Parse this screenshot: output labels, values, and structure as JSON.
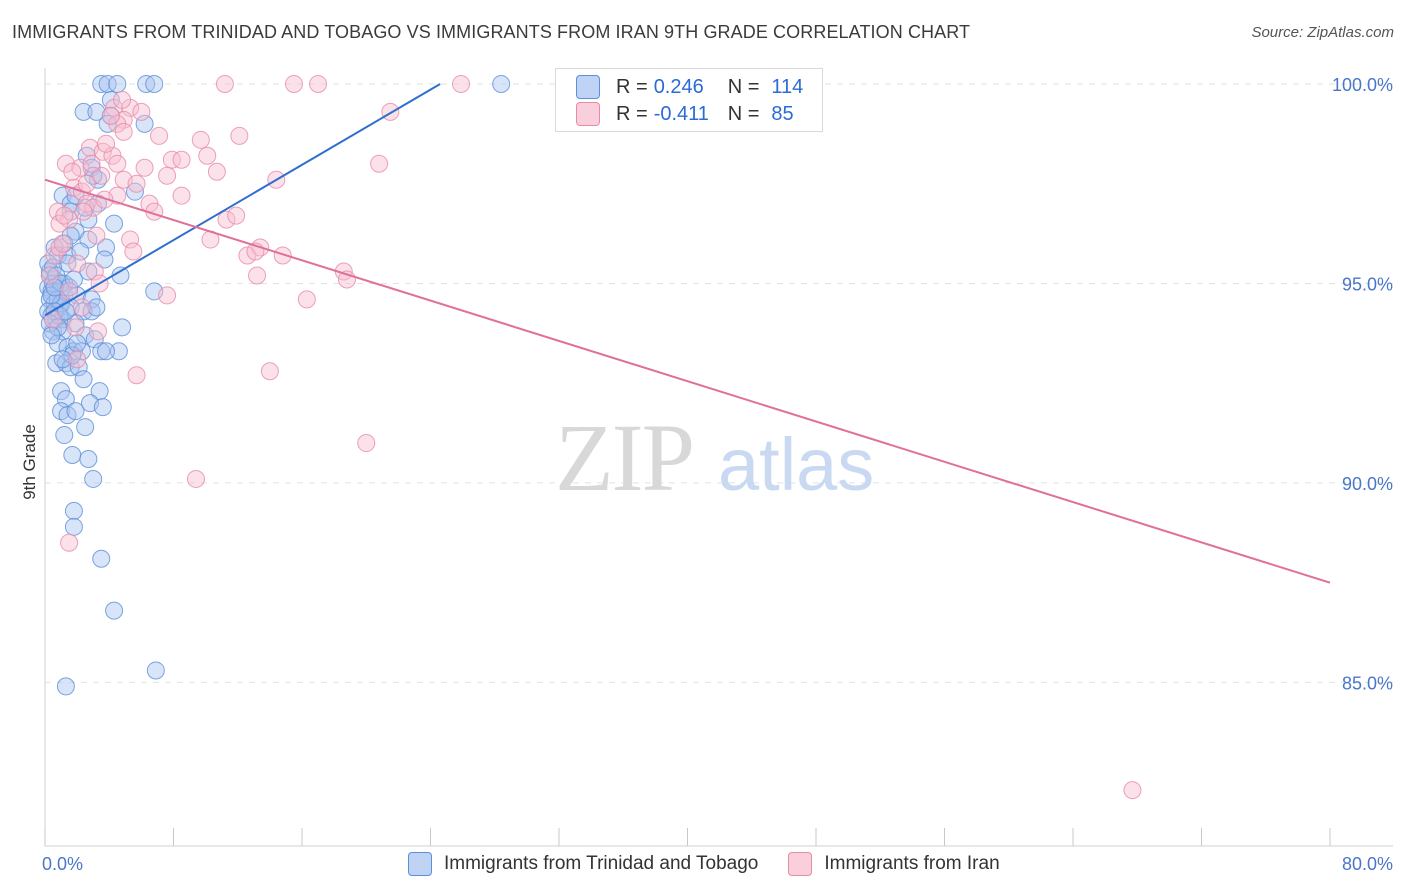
{
  "title": "IMMIGRANTS FROM TRINIDAD AND TOBAGO VS IMMIGRANTS FROM IRAN 9TH GRADE CORRELATION CHART",
  "source": "Source: ZipAtlas.com",
  "watermark": {
    "zip": "ZIP",
    "atlas": "atlas"
  },
  "legend_stats": [
    {
      "r_label": "R =",
      "r_value": "0.246",
      "n_label": "N =",
      "n_value": "114"
    },
    {
      "r_label": "R =",
      "r_value": "-0.411",
      "n_label": "N =",
      "n_value": "85"
    }
  ],
  "colors": {
    "blue_fill": "#a9c4ef",
    "blue_stroke": "#5b8fd8",
    "blue_line": "#2f6fcf",
    "pink_fill": "#f6bfd0",
    "pink_stroke": "#e88aa8",
    "pink_line": "#e0709a",
    "grid": "#e2e2e2",
    "tick_text": "#4a76c9"
  },
  "chart_data": {
    "type": "scatter",
    "title": "IMMIGRANTS FROM TRINIDAD AND TOBAGO VS IMMIGRANTS FROM IRAN 9TH GRADE CORRELATION CHART",
    "xlabel": "",
    "ylabel": "9th Grade",
    "xlim": [
      0,
      80
    ],
    "ylim": [
      80.9,
      100.4
    ],
    "x_tick_labels": [
      "0.0%",
      "80.0%"
    ],
    "y_ticks": [
      85,
      90,
      95,
      100
    ],
    "y_tick_labels": [
      "85.0%",
      "90.0%",
      "95.0%",
      "100.0%"
    ],
    "legend_position": "bottom-center",
    "series": [
      {
        "name": "Immigrants from Trinidad and Tobago",
        "color": "blue",
        "R": 0.246,
        "N": 114,
        "trend": {
          "x": [
            0,
            24.6
          ],
          "y": [
            94.2,
            100.0
          ]
        },
        "points": [
          [
            3.5,
            100
          ],
          [
            3.9,
            100
          ],
          [
            4.5,
            100
          ],
          [
            6.3,
            100
          ],
          [
            6.8,
            100
          ],
          [
            28.4,
            100
          ],
          [
            4.1,
            99.6
          ],
          [
            2.4,
            99.3
          ],
          [
            3.2,
            99.3
          ],
          [
            6.2,
            99.0
          ],
          [
            4.1,
            99.2
          ],
          [
            3.9,
            99.0
          ],
          [
            2.6,
            98.2
          ],
          [
            2.9,
            97.9
          ],
          [
            3.3,
            97.6
          ],
          [
            5.6,
            97.3
          ],
          [
            1.1,
            97.2
          ],
          [
            1.6,
            97.0
          ],
          [
            3.3,
            97.0
          ],
          [
            1.6,
            96.8
          ],
          [
            2.7,
            96.6
          ],
          [
            4.3,
            96.5
          ],
          [
            1.9,
            96.3
          ],
          [
            2.7,
            96.1
          ],
          [
            1.2,
            96.0
          ],
          [
            0.6,
            95.9
          ],
          [
            1.6,
            96.2
          ],
          [
            3.8,
            95.9
          ],
          [
            0.8,
            95.7
          ],
          [
            1.4,
            95.7
          ],
          [
            3.7,
            95.6
          ],
          [
            1.4,
            95.5
          ],
          [
            2.7,
            95.3
          ],
          [
            4.7,
            95.2
          ],
          [
            0.3,
            95.2
          ],
          [
            0.6,
            95.1
          ],
          [
            1.2,
            95.0
          ],
          [
            0.2,
            94.9
          ],
          [
            0.4,
            94.8
          ],
          [
            0.9,
            94.8
          ],
          [
            1.2,
            94.7
          ],
          [
            2.0,
            94.7
          ],
          [
            2.9,
            94.6
          ],
          [
            6.8,
            94.8
          ],
          [
            0.3,
            94.6
          ],
          [
            0.6,
            94.5
          ],
          [
            0.9,
            94.4
          ],
          [
            1.6,
            94.4
          ],
          [
            2.4,
            94.3
          ],
          [
            2.9,
            94.3
          ],
          [
            3.2,
            94.4
          ],
          [
            0.2,
            94.3
          ],
          [
            0.4,
            94.2
          ],
          [
            0.7,
            94.1
          ],
          [
            1.1,
            94.1
          ],
          [
            1.9,
            94.0
          ],
          [
            4.8,
            93.9
          ],
          [
            0.5,
            93.8
          ],
          [
            1.1,
            93.8
          ],
          [
            2.5,
            93.7
          ],
          [
            3.1,
            93.6
          ],
          [
            0.8,
            93.5
          ],
          [
            1.4,
            93.4
          ],
          [
            1.8,
            93.3
          ],
          [
            2.3,
            93.3
          ],
          [
            3.5,
            93.3
          ],
          [
            4.6,
            93.3
          ],
          [
            3.8,
            93.3
          ],
          [
            0.7,
            93.0
          ],
          [
            1.3,
            93.0
          ],
          [
            1.6,
            92.9
          ],
          [
            2.1,
            92.9
          ],
          [
            2.4,
            92.6
          ],
          [
            3.4,
            92.3
          ],
          [
            1.0,
            92.3
          ],
          [
            1.3,
            92.1
          ],
          [
            2.8,
            92.0
          ],
          [
            3.6,
            91.9
          ],
          [
            1.0,
            91.8
          ],
          [
            1.4,
            91.7
          ],
          [
            1.9,
            91.8
          ],
          [
            2.5,
            91.4
          ],
          [
            1.2,
            91.2
          ],
          [
            1.7,
            90.7
          ],
          [
            2.7,
            90.6
          ],
          [
            3.0,
            90.1
          ],
          [
            1.8,
            89.3
          ],
          [
            1.8,
            88.9
          ],
          [
            3.5,
            88.1
          ],
          [
            4.3,
            86.8
          ],
          [
            6.9,
            85.3
          ],
          [
            1.3,
            84.9
          ],
          [
            0.3,
            95.3
          ],
          [
            0.5,
            95.0
          ],
          [
            0.8,
            94.6
          ],
          [
            1.0,
            94.5
          ],
          [
            0.4,
            94.7
          ],
          [
            0.6,
            94.3
          ],
          [
            0.9,
            94.2
          ],
          [
            1.3,
            94.3
          ],
          [
            0.2,
            95.5
          ],
          [
            0.5,
            95.4
          ],
          [
            0.7,
            95.2
          ],
          [
            1.0,
            95.0
          ],
          [
            1.5,
            94.9
          ],
          [
            0.3,
            94.0
          ],
          [
            0.8,
            93.9
          ],
          [
            1.7,
            93.2
          ],
          [
            2.2,
            95.8
          ],
          [
            2.5,
            96.9
          ],
          [
            3.0,
            97.7
          ],
          [
            1.9,
            97.2
          ],
          [
            0.4,
            93.7
          ],
          [
            1.1,
            93.1
          ],
          [
            2.0,
            93.5
          ],
          [
            0.6,
            94.9
          ],
          [
            1.8,
            95.1
          ]
        ]
      },
      {
        "name": "Immigrants from Iran",
        "color": "pink",
        "R": -0.411,
        "N": 85,
        "trend": {
          "x": [
            0,
            80
          ],
          "y": [
            97.6,
            87.5
          ]
        },
        "points": [
          [
            11.2,
            100
          ],
          [
            15.5,
            100
          ],
          [
            17.0,
            100
          ],
          [
            25.9,
            100
          ],
          [
            4.3,
            99.4
          ],
          [
            5.3,
            99.4
          ],
          [
            4.9,
            99.1
          ],
          [
            4.5,
            99.0
          ],
          [
            21.5,
            99.3
          ],
          [
            4.9,
            98.8
          ],
          [
            7.1,
            98.7
          ],
          [
            12.1,
            98.7
          ],
          [
            2.8,
            98.4
          ],
          [
            3.6,
            98.3
          ],
          [
            4.2,
            98.2
          ],
          [
            9.7,
            98.6
          ],
          [
            10.1,
            98.2
          ],
          [
            7.9,
            98.1
          ],
          [
            8.5,
            98.1
          ],
          [
            20.8,
            98.0
          ],
          [
            1.3,
            98.0
          ],
          [
            2.2,
            97.9
          ],
          [
            4.5,
            98.0
          ],
          [
            6.2,
            97.9
          ],
          [
            3.5,
            97.7
          ],
          [
            7.6,
            97.7
          ],
          [
            10.7,
            97.8
          ],
          [
            14.4,
            97.6
          ],
          [
            4.9,
            97.6
          ],
          [
            1.8,
            97.4
          ],
          [
            2.3,
            97.3
          ],
          [
            2.6,
            97.0
          ],
          [
            3.0,
            96.9
          ],
          [
            4.5,
            97.2
          ],
          [
            6.5,
            97.0
          ],
          [
            8.5,
            97.2
          ],
          [
            3.7,
            97.1
          ],
          [
            0.8,
            96.8
          ],
          [
            1.5,
            96.6
          ],
          [
            0.9,
            96.5
          ],
          [
            6.8,
            96.8
          ],
          [
            11.3,
            96.6
          ],
          [
            11.9,
            96.7
          ],
          [
            10.3,
            96.1
          ],
          [
            5.3,
            96.1
          ],
          [
            0.6,
            95.7
          ],
          [
            5.5,
            95.8
          ],
          [
            12.6,
            95.7
          ],
          [
            13.4,
            95.9
          ],
          [
            13.1,
            95.8
          ],
          [
            14.8,
            95.7
          ],
          [
            3.1,
            95.3
          ],
          [
            0.3,
            95.2
          ],
          [
            13.2,
            95.2
          ],
          [
            18.6,
            95.3
          ],
          [
            18.8,
            95.1
          ],
          [
            3.4,
            95.0
          ],
          [
            1.5,
            94.8
          ],
          [
            7.6,
            94.7
          ],
          [
            16.3,
            94.6
          ],
          [
            2.3,
            94.4
          ],
          [
            0.5,
            94.1
          ],
          [
            1.9,
            93.9
          ],
          [
            3.3,
            93.8
          ],
          [
            2.0,
            93.1
          ],
          [
            5.7,
            92.7
          ],
          [
            14.0,
            92.8
          ],
          [
            20.0,
            91.0
          ],
          [
            9.4,
            90.1
          ],
          [
            1.5,
            88.5
          ],
          [
            67.7,
            82.3
          ],
          [
            2.6,
            97.5
          ],
          [
            1.2,
            96.7
          ],
          [
            3.8,
            98.5
          ],
          [
            4.1,
            99.2
          ],
          [
            6.0,
            99.3
          ],
          [
            4.8,
            99.6
          ],
          [
            0.9,
            95.9
          ],
          [
            2.0,
            95.5
          ],
          [
            1.7,
            97.8
          ],
          [
            3.2,
            96.2
          ],
          [
            2.9,
            98.0
          ],
          [
            5.7,
            97.5
          ],
          [
            1.1,
            96.0
          ],
          [
            2.4,
            96.8
          ]
        ]
      }
    ]
  }
}
